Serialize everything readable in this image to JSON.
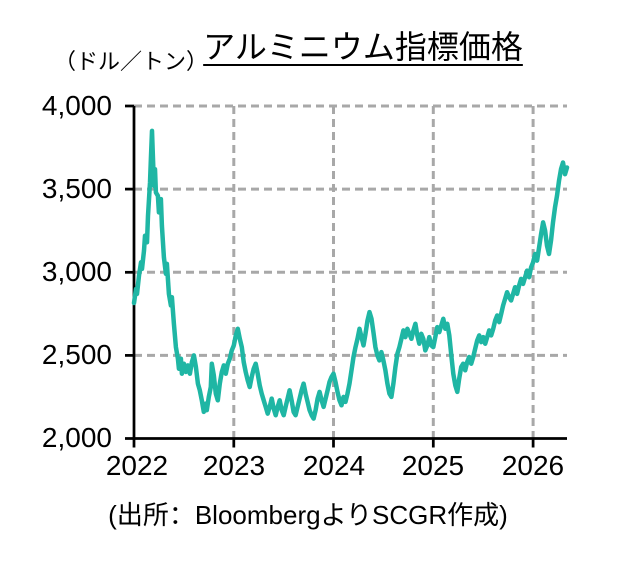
{
  "chart_data": {
    "type": "line",
    "title": "アルミニウム指標価格",
    "unit_label": "（ドル／トン）",
    "source": "(出所：BloombergよりSCGR作成)",
    "line_color": "#1FB6A4",
    "grid_color": "#A8A8A8",
    "axis_color": "#000000",
    "grid": "dashed",
    "legend": "none",
    "xlim": [
      2022,
      2026.34
    ],
    "ylim": [
      2000,
      4000
    ],
    "xtick_values": [
      2022,
      2023,
      2024,
      2025,
      2026
    ],
    "xtick_labels": [
      "2022",
      "2023",
      "2024",
      "2025",
      "2026"
    ],
    "ytick_values": [
      4000,
      3500,
      3000,
      2500,
      2000
    ],
    "ytick_labels": [
      "4,000",
      "3,500",
      "3,000",
      "2,500",
      "2,000"
    ],
    "series": [
      {
        "points": [
          [
            2022.0,
            2815
          ],
          [
            2022.02,
            2900
          ],
          [
            2022.03,
            2870
          ],
          [
            2022.05,
            2980
          ],
          [
            2022.07,
            3060
          ],
          [
            2022.08,
            3020
          ],
          [
            2022.1,
            3130
          ],
          [
            2022.11,
            3220
          ],
          [
            2022.13,
            3180
          ],
          [
            2022.14,
            3340
          ],
          [
            2022.16,
            3540
          ],
          [
            2022.17,
            3700
          ],
          [
            2022.18,
            3850
          ],
          [
            2022.19,
            3680
          ],
          [
            2022.2,
            3520
          ],
          [
            2022.21,
            3620
          ],
          [
            2022.22,
            3480
          ],
          [
            2022.24,
            3460
          ],
          [
            2022.25,
            3360
          ],
          [
            2022.27,
            3440
          ],
          [
            2022.28,
            3280
          ],
          [
            2022.3,
            3090
          ],
          [
            2022.32,
            2990
          ],
          [
            2022.33,
            3050
          ],
          [
            2022.35,
            2870
          ],
          [
            2022.37,
            2800
          ],
          [
            2022.38,
            2850
          ],
          [
            2022.4,
            2690
          ],
          [
            2022.42,
            2550
          ],
          [
            2022.44,
            2480
          ],
          [
            2022.45,
            2420
          ],
          [
            2022.47,
            2480
          ],
          [
            2022.48,
            2390
          ],
          [
            2022.5,
            2450
          ],
          [
            2022.52,
            2400
          ],
          [
            2022.54,
            2440
          ],
          [
            2022.56,
            2390
          ],
          [
            2022.58,
            2460
          ],
          [
            2022.6,
            2500
          ],
          [
            2022.62,
            2430
          ],
          [
            2022.64,
            2330
          ],
          [
            2022.66,
            2290
          ],
          [
            2022.68,
            2230
          ],
          [
            2022.7,
            2160
          ],
          [
            2022.72,
            2210
          ],
          [
            2022.73,
            2170
          ],
          [
            2022.75,
            2250
          ],
          [
            2022.77,
            2310
          ],
          [
            2022.78,
            2450
          ],
          [
            2022.8,
            2380
          ],
          [
            2022.82,
            2270
          ],
          [
            2022.84,
            2230
          ],
          [
            2022.86,
            2330
          ],
          [
            2022.88,
            2400
          ],
          [
            2022.9,
            2440
          ],
          [
            2022.92,
            2390
          ],
          [
            2022.94,
            2450
          ],
          [
            2022.96,
            2480
          ],
          [
            2022.98,
            2530
          ],
          [
            2023.0,
            2560
          ],
          [
            2023.02,
            2620
          ],
          [
            2023.04,
            2660
          ],
          [
            2023.06,
            2600
          ],
          [
            2023.08,
            2550
          ],
          [
            2023.1,
            2460
          ],
          [
            2023.12,
            2400
          ],
          [
            2023.14,
            2350
          ],
          [
            2023.16,
            2310
          ],
          [
            2023.18,
            2370
          ],
          [
            2023.2,
            2420
          ],
          [
            2023.22,
            2450
          ],
          [
            2023.24,
            2390
          ],
          [
            2023.26,
            2320
          ],
          [
            2023.28,
            2270
          ],
          [
            2023.3,
            2230
          ],
          [
            2023.32,
            2190
          ],
          [
            2023.34,
            2150
          ],
          [
            2023.36,
            2190
          ],
          [
            2023.38,
            2240
          ],
          [
            2023.4,
            2180
          ],
          [
            2023.42,
            2140
          ],
          [
            2023.44,
            2190
          ],
          [
            2023.46,
            2230
          ],
          [
            2023.48,
            2170
          ],
          [
            2023.5,
            2140
          ],
          [
            2023.52,
            2190
          ],
          [
            2023.54,
            2240
          ],
          [
            2023.56,
            2290
          ],
          [
            2023.58,
            2230
          ],
          [
            2023.6,
            2160
          ],
          [
            2023.62,
            2140
          ],
          [
            2023.64,
            2190
          ],
          [
            2023.66,
            2240
          ],
          [
            2023.68,
            2290
          ],
          [
            2023.7,
            2330
          ],
          [
            2023.72,
            2270
          ],
          [
            2023.74,
            2220
          ],
          [
            2023.76,
            2170
          ],
          [
            2023.78,
            2140
          ],
          [
            2023.8,
            2120
          ],
          [
            2023.82,
            2170
          ],
          [
            2023.84,
            2240
          ],
          [
            2023.86,
            2280
          ],
          [
            2023.88,
            2230
          ],
          [
            2023.9,
            2190
          ],
          [
            2023.92,
            2240
          ],
          [
            2023.94,
            2290
          ],
          [
            2023.96,
            2340
          ],
          [
            2023.98,
            2370
          ],
          [
            2024.0,
            2390
          ],
          [
            2024.02,
            2340
          ],
          [
            2024.04,
            2280
          ],
          [
            2024.06,
            2230
          ],
          [
            2024.08,
            2200
          ],
          [
            2024.1,
            2250
          ],
          [
            2024.12,
            2220
          ],
          [
            2024.14,
            2270
          ],
          [
            2024.16,
            2330
          ],
          [
            2024.18,
            2410
          ],
          [
            2024.2,
            2490
          ],
          [
            2024.22,
            2550
          ],
          [
            2024.24,
            2600
          ],
          [
            2024.26,
            2660
          ],
          [
            2024.28,
            2610
          ],
          [
            2024.3,
            2560
          ],
          [
            2024.32,
            2630
          ],
          [
            2024.34,
            2710
          ],
          [
            2024.36,
            2760
          ],
          [
            2024.38,
            2720
          ],
          [
            2024.4,
            2640
          ],
          [
            2024.42,
            2550
          ],
          [
            2024.44,
            2500
          ],
          [
            2024.46,
            2470
          ],
          [
            2024.48,
            2520
          ],
          [
            2024.5,
            2470
          ],
          [
            2024.52,
            2410
          ],
          [
            2024.54,
            2330
          ],
          [
            2024.56,
            2270
          ],
          [
            2024.58,
            2250
          ],
          [
            2024.6,
            2330
          ],
          [
            2024.62,
            2430
          ],
          [
            2024.64,
            2510
          ],
          [
            2024.66,
            2550
          ],
          [
            2024.68,
            2600
          ],
          [
            2024.7,
            2650
          ],
          [
            2024.72,
            2610
          ],
          [
            2024.74,
            2660
          ],
          [
            2024.76,
            2630
          ],
          [
            2024.78,
            2600
          ],
          [
            2024.8,
            2650
          ],
          [
            2024.82,
            2690
          ],
          [
            2024.84,
            2620
          ],
          [
            2024.86,
            2570
          ],
          [
            2024.88,
            2630
          ],
          [
            2024.9,
            2600
          ],
          [
            2024.92,
            2530
          ],
          [
            2024.94,
            2560
          ],
          [
            2024.96,
            2610
          ],
          [
            2024.98,
            2560
          ],
          [
            2025.0,
            2550
          ],
          [
            2025.02,
            2610
          ],
          [
            2025.04,
            2670
          ],
          [
            2025.06,
            2640
          ],
          [
            2025.08,
            2680
          ],
          [
            2025.1,
            2720
          ],
          [
            2025.12,
            2660
          ],
          [
            2025.14,
            2690
          ],
          [
            2025.16,
            2620
          ],
          [
            2025.18,
            2500
          ],
          [
            2025.2,
            2390
          ],
          [
            2025.22,
            2320
          ],
          [
            2025.24,
            2280
          ],
          [
            2025.26,
            2360
          ],
          [
            2025.28,
            2430
          ],
          [
            2025.3,
            2450
          ],
          [
            2025.32,
            2410
          ],
          [
            2025.34,
            2460
          ],
          [
            2025.36,
            2490
          ],
          [
            2025.38,
            2450
          ],
          [
            2025.4,
            2490
          ],
          [
            2025.42,
            2540
          ],
          [
            2025.44,
            2590
          ],
          [
            2025.46,
            2620
          ],
          [
            2025.48,
            2580
          ],
          [
            2025.5,
            2610
          ],
          [
            2025.52,
            2570
          ],
          [
            2025.54,
            2610
          ],
          [
            2025.56,
            2650
          ],
          [
            2025.58,
            2620
          ],
          [
            2025.6,
            2660
          ],
          [
            2025.62,
            2710
          ],
          [
            2025.64,
            2740
          ],
          [
            2025.66,
            2700
          ],
          [
            2025.68,
            2750
          ],
          [
            2025.7,
            2800
          ],
          [
            2025.72,
            2840
          ],
          [
            2025.74,
            2880
          ],
          [
            2025.76,
            2850
          ],
          [
            2025.78,
            2830
          ],
          [
            2025.8,
            2870
          ],
          [
            2025.82,
            2910
          ],
          [
            2025.84,
            2870
          ],
          [
            2025.86,
            2920
          ],
          [
            2025.88,
            2960
          ],
          [
            2025.9,
            2930
          ],
          [
            2025.92,
            2970
          ],
          [
            2025.94,
            3010
          ],
          [
            2025.96,
            2970
          ],
          [
            2025.98,
            3030
          ],
          [
            2026.0,
            3060
          ],
          [
            2026.02,
            3110
          ],
          [
            2026.04,
            3070
          ],
          [
            2026.06,
            3150
          ],
          [
            2026.08,
            3230
          ],
          [
            2026.1,
            3300
          ],
          [
            2026.12,
            3250
          ],
          [
            2026.14,
            3160
          ],
          [
            2026.16,
            3110
          ],
          [
            2026.18,
            3190
          ],
          [
            2026.2,
            3300
          ],
          [
            2026.22,
            3390
          ],
          [
            2026.24,
            3460
          ],
          [
            2026.26,
            3550
          ],
          [
            2026.28,
            3620
          ],
          [
            2026.3,
            3660
          ],
          [
            2026.32,
            3590
          ],
          [
            2026.34,
            3630
          ]
        ]
      }
    ]
  }
}
